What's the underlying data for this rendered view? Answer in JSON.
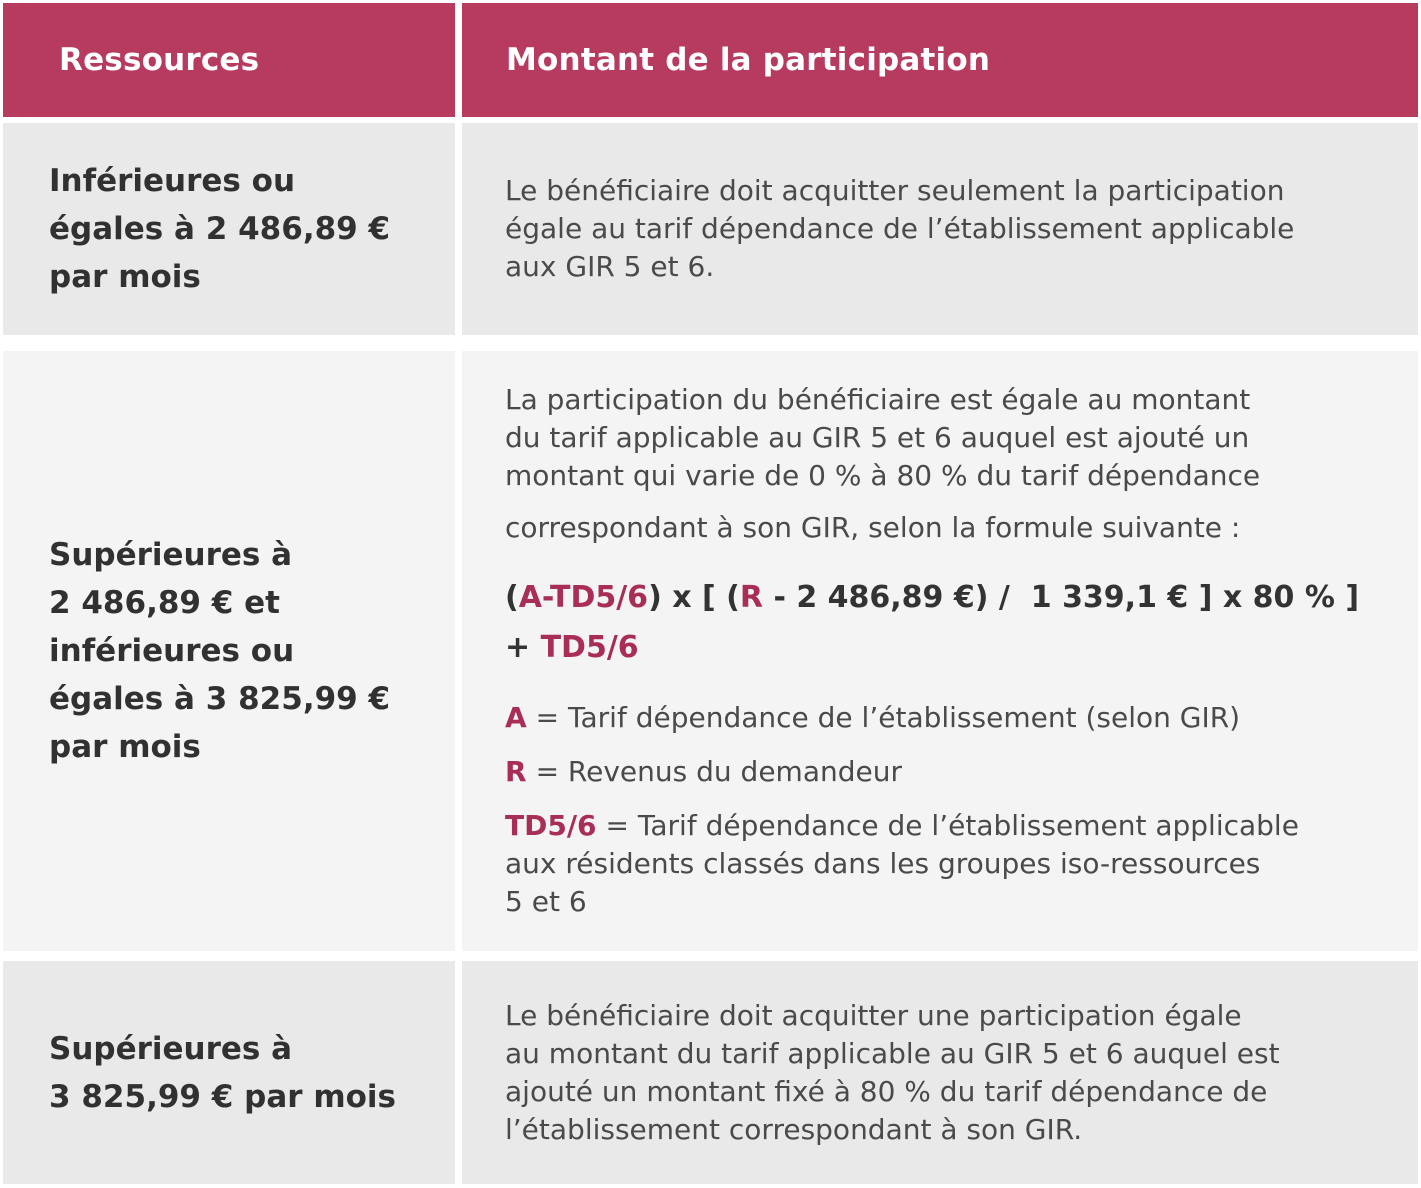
{
  "colors": {
    "header_bg": "#b73a5f",
    "header_text": "#ffffff",
    "accent": "#a92e56",
    "row_bg_dark": "#e9e9e9",
    "row_bg_light": "#f4f4f4",
    "heading_text": "#313131",
    "body_text": "#4a4a4a"
  },
  "table": {
    "header": {
      "resources": "Ressources",
      "participation": "Montant de la participation"
    },
    "row1": {
      "resources_lines": [
        "Inférieures ou",
        "égales à 2 486,89 €",
        "par mois"
      ],
      "participation_lines": [
        "Le bénéficiaire doit acquitter seulement la participation",
        "égale au tarif dépendance de l’établissement applicable",
        "aux GIR 5 et 6."
      ]
    },
    "row2": {
      "resources_lines": [
        "Supérieures à",
        "2 486,89 € et",
        "inférieures ou",
        "égales à 3 825,99 €",
        "par mois"
      ],
      "intro_lines": [
        "La participation du bénéficiaire est égale au montant",
        "du tarif applicable au GIR 5 et 6 auquel est ajouté un",
        "montant qui varie de 0 % à 80 % du tarif dépendance"
      ],
      "intro_more": "correspondant à son GIR, selon la formule suivante :",
      "formula": {
        "open_paren": "(",
        "a_term": "A-TD5/6",
        "middle": ") x [ (",
        "r_term": "R",
        "tail": " - 2 486,89 €) /  1 339,1 € ] x 80 % ]",
        "plus": "+ ",
        "td_term": "TD5/6"
      },
      "legend": [
        {
          "term": "A",
          "rest": "= Tarif dépendance de l’établissement (selon GIR)",
          "extra_lines": []
        },
        {
          "term": "R",
          "rest": "= Revenus du demandeur",
          "extra_lines": []
        },
        {
          "term": "TD5/6",
          "rest": "= Tarif dépendance de l’établissement applicable",
          "extra_lines": [
            "aux résidents classés dans les groupes iso-ressources",
            "5 et 6"
          ]
        }
      ]
    },
    "row3": {
      "resources_lines": [
        "Supérieures à",
        "3 825,99 € par mois"
      ],
      "participation_lines": [
        "Le bénéficiaire doit acquitter une participation égale",
        "au montant du tarif applicable au GIR 5 et 6 auquel est",
        "ajouté un montant fixé à 80 % du tarif dépendance de",
        "l’établissement correspondant à son GIR."
      ]
    }
  }
}
